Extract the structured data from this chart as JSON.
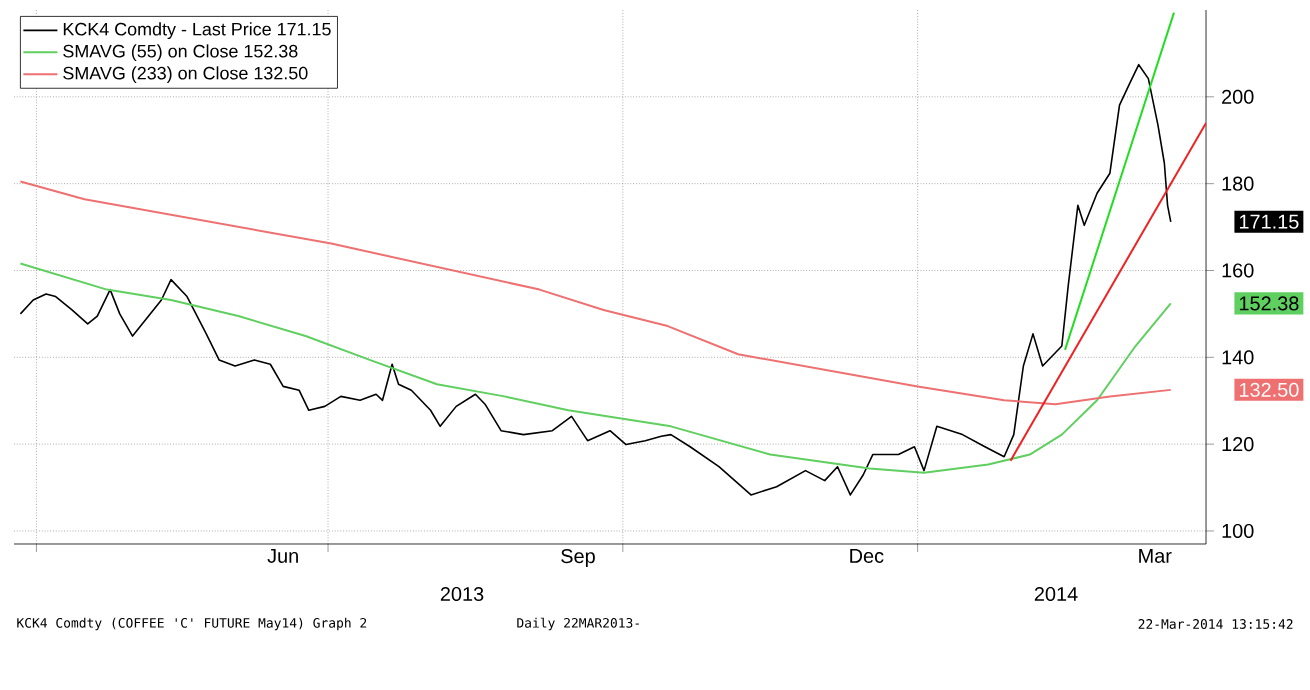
{
  "chart_data": {
    "type": "line",
    "xlim": [
      "2013-03-25",
      "2014-04-01"
    ],
    "ylim": [
      97,
      220
    ],
    "yticks": [
      100,
      120,
      140,
      160,
      180,
      200
    ],
    "xticks": [
      {
        "value": "2013-04-01",
        "label": null
      },
      {
        "value": "2013-07-01",
        "label": null
      },
      {
        "value": "2013-10-01",
        "label": null
      },
      {
        "value": "2014-01-01",
        "label": null
      },
      {
        "value": "2013-06-17",
        "label": "Jun"
      },
      {
        "value": "2013-09-17",
        "label": "Sep"
      },
      {
        "value": "2013-12-16",
        "label": "Dec"
      },
      {
        "value": "2014-03-16",
        "label": "Mar"
      }
    ],
    "grid": true,
    "legend": "top left",
    "series": [
      {
        "name": "KCK4 Comdty - Last Price 171.15",
        "color": "#000000",
        "x": [
          "2013-03-27",
          "2013-03-31",
          "2013-04-04",
          "2013-04-07",
          "2013-04-12",
          "2013-04-17",
          "2013-04-20",
          "2013-04-24",
          "2013-04-27",
          "2013-05-01",
          "2013-05-06",
          "2013-05-10",
          "2013-05-13",
          "2013-05-18",
          "2013-05-24",
          "2013-05-28",
          "2013-06-02",
          "2013-06-08",
          "2013-06-13",
          "2013-06-17",
          "2013-06-22",
          "2013-06-25",
          "2013-06-30",
          "2013-07-05",
          "2013-07-11",
          "2013-07-16",
          "2013-07-18",
          "2013-07-21",
          "2013-07-23",
          "2013-07-27",
          "2013-08-02",
          "2013-08-05",
          "2013-08-10",
          "2013-08-16",
          "2013-08-19",
          "2013-08-24",
          "2013-08-31",
          "2013-09-09",
          "2013-09-15",
          "2013-09-20",
          "2013-09-27",
          "2013-10-02",
          "2013-10-08",
          "2013-10-13",
          "2013-10-16",
          "2013-10-22",
          "2013-10-31",
          "2013-11-10",
          "2013-11-18",
          "2013-11-27",
          "2013-12-03",
          "2013-12-07",
          "2013-12-11",
          "2013-12-15",
          "2013-12-18",
          "2013-12-26",
          "2013-12-31",
          "2014-01-03",
          "2014-01-07",
          "2014-01-15",
          "2014-01-22",
          "2014-01-28",
          "2014-01-31",
          "2014-02-03",
          "2014-02-06",
          "2014-02-09",
          "2014-02-15",
          "2014-02-17",
          "2014-02-20",
          "2014-02-22",
          "2014-02-26",
          "2014-03-02",
          "2014-03-05",
          "2014-03-08",
          "2014-03-11",
          "2014-03-14",
          "2014-03-17",
          "2014-03-19",
          "2014-03-20",
          "2014-03-21"
        ],
        "values": [
          150.0,
          153.2,
          154.6,
          154,
          151,
          147.7,
          149.5,
          155.6,
          150,
          144.9,
          149.5,
          153.2,
          157.9,
          154,
          145.4,
          139.4,
          138,
          139.4,
          138.4,
          133.3,
          132.4,
          127.8,
          128.7,
          131,
          130.1,
          131.5,
          130.1,
          138.4,
          133.8,
          132.4,
          127.8,
          124.1,
          128.7,
          131.5,
          129.2,
          123.1,
          122.2,
          123.1,
          126.4,
          120.8,
          123.1,
          119.9,
          120.8,
          121.8,
          122.2,
          119.4,
          114.8,
          108.3,
          110.2,
          113.9,
          111.6,
          114.8,
          108.3,
          112.9,
          117.6,
          117.6,
          119.4,
          113.9,
          124.1,
          122.2,
          119.4,
          117.1,
          122.2,
          138,
          145.4,
          138,
          142.6,
          156.5,
          175,
          170.4,
          177.8,
          182.4,
          198.1,
          202.8,
          207.4,
          204.2,
          193.5,
          184.7,
          175,
          171.2
        ]
      },
      {
        "name": "SMAVG (55) on Close 152.38",
        "color": "#5fcf5f",
        "x": [
          "2013-03-27",
          "2013-04-23",
          "2013-05-13",
          "2013-06-03",
          "2013-06-24",
          "2013-07-14",
          "2013-08-04",
          "2013-08-25",
          "2013-09-14",
          "2013-10-16",
          "2013-11-16",
          "2013-12-17",
          "2014-01-03",
          "2014-01-23",
          "2014-02-05",
          "2014-02-15",
          "2014-02-26",
          "2014-03-10",
          "2014-03-21"
        ],
        "values": [
          161.6,
          155.6,
          153.2,
          149.5,
          144.9,
          139.4,
          133.8,
          131,
          127.8,
          124.1,
          117.6,
          114.4,
          113.4,
          115.3,
          117.6,
          122.2,
          130.1,
          142.6,
          152.4
        ]
      },
      {
        "name": "SMAVG (233) on Close 132.50",
        "color": "#ee7070",
        "x": [
          "2013-03-27",
          "2013-04-16",
          "2013-07-02",
          "2013-09-05",
          "2013-09-25",
          "2013-10-15",
          "2013-11-06",
          "2014-01-01",
          "2014-01-28",
          "2014-02-13",
          "2014-03-02",
          "2014-03-21"
        ],
        "values": [
          180.5,
          176.4,
          166.2,
          155.6,
          150.9,
          147.2,
          140.7,
          133.3,
          130.1,
          129.2,
          131,
          132.5
        ]
      },
      {
        "type": "line",
        "color": "#22dd22",
        "x": [
          "2014-02-16",
          "2014-03-22"
        ],
        "values": [
          141.7,
          219.4
        ]
      },
      {
        "type": "line",
        "color": "#ee2222",
        "x": [
          "2014-01-30",
          "2014-04-01"
        ],
        "values": [
          116.2,
          194
        ]
      }
    ],
    "annotations": [
      "171.15",
      "152.38",
      "132.50",
      "2013",
      "2014",
      "KCK4 Comdty (COFFEE 'C' FUTURE May14) Graph 2",
      "Daily 22MAR2013-",
      "22-Mar-2014 13:15:42"
    ]
  }
}
